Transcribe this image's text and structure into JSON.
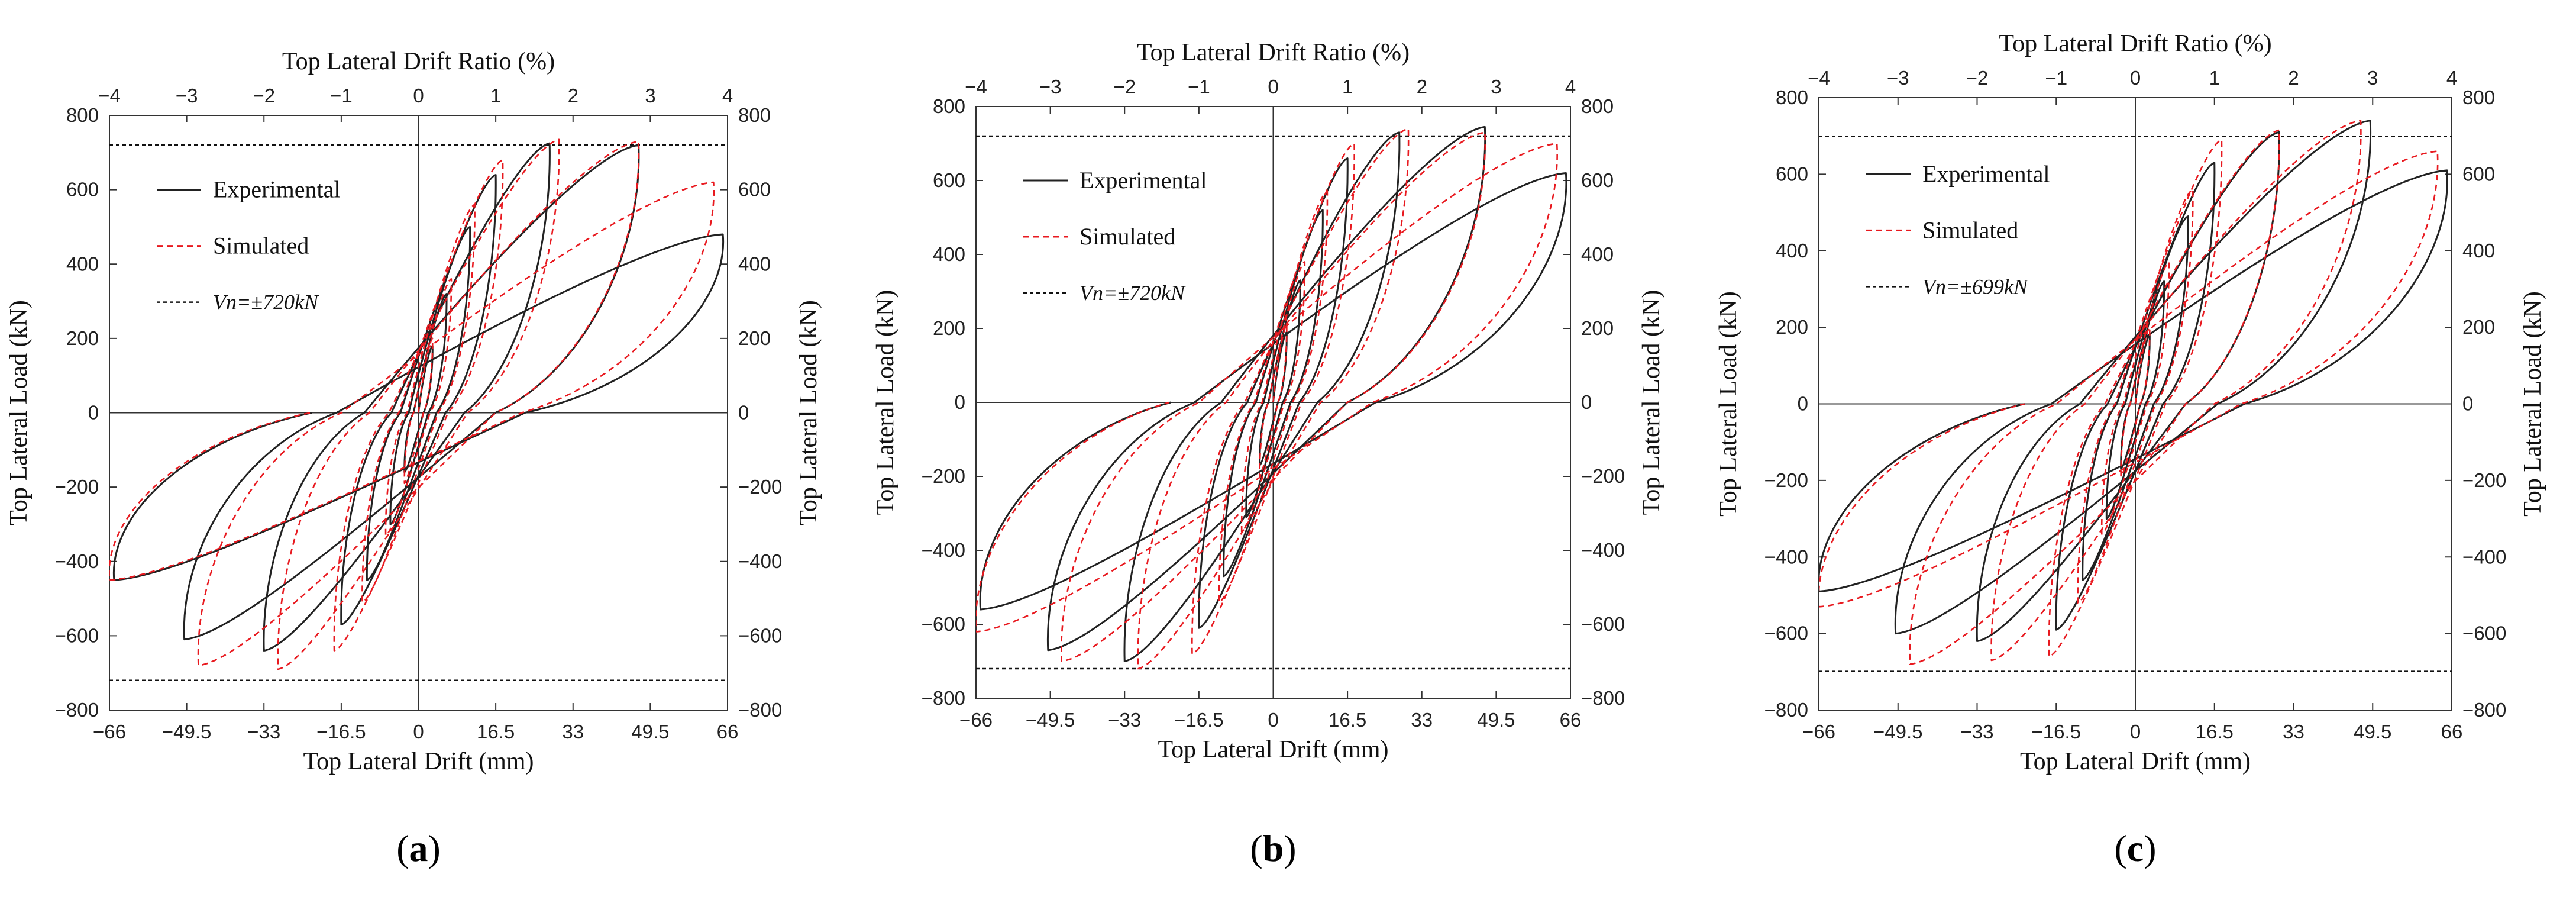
{
  "figure": {
    "colors": {
      "experimental": "#222222",
      "simulated": "#e8191f",
      "capacity": "#111111",
      "axis": "#333333"
    }
  },
  "chart_data": [
    {
      "panel_label": "a",
      "type": "line",
      "xlabel": "Top  Lateral Drift (mm)",
      "ylabel_left": "Top  Lateral  Load (kN)",
      "ylabel_right": "Top  Lateral  Load (kN)",
      "x2label": "Top Lateral Drift Ratio (%)",
      "xlim": [
        -66,
        66
      ],
      "ylim": [
        -800,
        800
      ],
      "xticks": [
        -66,
        -49.5,
        -33,
        -16.5,
        0,
        16.5,
        33,
        49.5,
        66
      ],
      "xtick_labels": [
        "−66",
        "−49.5",
        "−33",
        "−16.5",
        "0",
        "16.5",
        "33",
        "49.5",
        "66"
      ],
      "x2ticks": [
        -4,
        -3,
        -2,
        -1,
        0,
        1,
        2,
        3,
        4
      ],
      "x2tick_labels": [
        "−4",
        "−3",
        "−2",
        "−1",
        "0",
        "1",
        "2",
        "3",
        "4"
      ],
      "yticks": [
        -800,
        -600,
        -400,
        -200,
        0,
        200,
        400,
        600,
        800
      ],
      "ytick_labels": [
        "−800",
        "−600",
        "−400",
        "−200",
        "0",
        "200",
        "400",
        "600",
        "800"
      ],
      "legend": {
        "experimental": "Experimental",
        "simulated": "Simulated",
        "capacity": "Vn=±720kN"
      },
      "capacity_load": 720,
      "series": [
        {
          "name": "Experimental",
          "style": "solid",
          "loops": [
            [
              3,
              180,
              -3,
              -160
            ],
            [
              6,
              320,
              -6,
              -300
            ],
            [
              11,
              500,
              -11,
              -450
            ],
            [
              16.5,
              640,
              -16.5,
              -570
            ],
            [
              28,
              725,
              -33,
              -640
            ],
            [
              47,
              720,
              -50,
              -610
            ],
            [
              65,
              480,
              -65,
              -450
            ]
          ]
        },
        {
          "name": "Simulated",
          "style": "dashed",
          "loops": [
            [
              3,
              200,
              -3,
              -190
            ],
            [
              7,
              360,
              -7,
              -330
            ],
            [
              12,
              560,
              -12,
              -510
            ],
            [
              18,
              680,
              -18,
              -640
            ],
            [
              30,
              735,
              -30,
              -690
            ],
            [
              47,
              730,
              -47,
              -680
            ],
            [
              63,
              620,
              -66,
              -450
            ]
          ]
        }
      ]
    },
    {
      "panel_label": "b",
      "type": "line",
      "xlabel": "Top Lateral Drift (mm)",
      "ylabel_left": "Top Lateral Load (kN)",
      "ylabel_right": "Top Lateral  Load (kN)",
      "x2label": "Top Lateral Drift Ratio (%)",
      "xlim": [
        -66,
        66
      ],
      "ylim": [
        -800,
        800
      ],
      "xticks": [
        -66,
        -49.5,
        -33,
        -16.5,
        0,
        16.5,
        33,
        49.5,
        66
      ],
      "xtick_labels": [
        "−66",
        "−49.5",
        "−33",
        "−16.5",
        "0",
        "16.5",
        "33",
        "49.5",
        "66"
      ],
      "x2ticks": [
        -4,
        -3,
        -2,
        -1,
        0,
        1,
        2,
        3,
        4
      ],
      "x2tick_labels": [
        "−4",
        "−3",
        "−2",
        "−1",
        "0",
        "1",
        "2",
        "3",
        "4"
      ],
      "yticks": [
        -800,
        -600,
        -400,
        -200,
        0,
        200,
        400,
        600,
        800
      ],
      "ytick_labels": [
        "−800",
        "−600",
        "−400",
        "−200",
        "0",
        "200",
        "400",
        "600",
        "800"
      ],
      "legend": {
        "experimental": "Experimental",
        "simulated": "Simulated",
        "capacity": "Vn=±720kN"
      },
      "capacity_load": 720,
      "series": [
        {
          "name": "Experimental",
          "style": "solid",
          "loops": [
            [
              3,
              190,
              -3,
              -170
            ],
            [
              6,
              330,
              -6,
              -310
            ],
            [
              11,
              520,
              -11,
              -470
            ],
            [
              16.5,
              660,
              -16.5,
              -610
            ],
            [
              28,
              730,
              -33,
              -700
            ],
            [
              47,
              745,
              -50,
              -670
            ],
            [
              65,
              620,
              -65,
              -560
            ]
          ]
        },
        {
          "name": "Simulated",
          "style": "dashed",
          "loops": [
            [
              3,
              210,
              -3,
              -200
            ],
            [
              7,
              380,
              -7,
              -350
            ],
            [
              12,
              570,
              -12,
              -540
            ],
            [
              18,
              700,
              -18,
              -680
            ],
            [
              30,
              740,
              -30,
              -720
            ],
            [
              47,
              730,
              -47,
              -700
            ],
            [
              63,
              700,
              -66,
              -620
            ]
          ]
        }
      ]
    },
    {
      "panel_label": "c",
      "type": "line",
      "xlabel": "Top Lateral Drift (mm)",
      "ylabel_left": "Top Lateral  Load (kN)",
      "ylabel_right": "Top Lateral  Load (kN)",
      "x2label": "Top Lateral Drift Ratio (%)",
      "xlim": [
        -66,
        66
      ],
      "ylim": [
        -800,
        800
      ],
      "xticks": [
        -66,
        -49.5,
        -33,
        -16.5,
        0,
        16.5,
        33,
        49.5,
        66
      ],
      "xtick_labels": [
        "−66",
        "−49.5",
        "−33",
        "−16.5",
        "0",
        "16.5",
        "33",
        "49.5",
        "66"
      ],
      "x2ticks": [
        -4,
        -3,
        -2,
        -1,
        0,
        1,
        2,
        3,
        4
      ],
      "x2tick_labels": [
        "−4",
        "−3",
        "−2",
        "−1",
        "0",
        "1",
        "2",
        "3",
        "4"
      ],
      "yticks": [
        -800,
        -600,
        -400,
        -200,
        0,
        200,
        400,
        600,
        800
      ],
      "ytick_labels": [
        "−800",
        "−600",
        "−400",
        "−200",
        "0",
        "200",
        "400",
        "600",
        "800"
      ],
      "legend": {
        "experimental": "Experimental",
        "simulated": "Simulated",
        "capacity": "Vn=±699kN"
      },
      "capacity_load": 699,
      "series": [
        {
          "name": "Experimental",
          "style": "solid",
          "loops": [
            [
              3,
              180,
              -3,
              -170
            ],
            [
              6,
              320,
              -6,
              -300
            ],
            [
              11,
              490,
              -11,
              -460
            ],
            [
              16.5,
              630,
              -16.5,
              -590
            ],
            [
              30,
              710,
              -33,
              -620
            ],
            [
              49,
              740,
              -50,
              -600
            ],
            [
              65,
              610,
              -66,
              -490
            ]
          ]
        },
        {
          "name": "Simulated",
          "style": "dashed",
          "loops": [
            [
              3,
              200,
              -3,
              -190
            ],
            [
              7,
              370,
              -7,
              -340
            ],
            [
              12,
              560,
              -12,
              -520
            ],
            [
              18,
              690,
              -18,
              -660
            ],
            [
              30,
              715,
              -30,
              -670
            ],
            [
              47,
              740,
              -47,
              -680
            ],
            [
              63,
              660,
              -66,
              -530
            ]
          ]
        }
      ]
    }
  ]
}
